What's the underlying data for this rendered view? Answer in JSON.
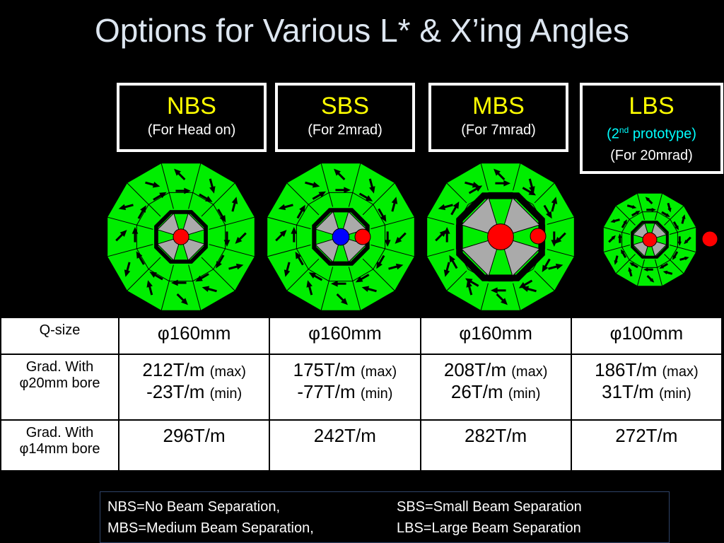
{
  "title": "Options for Various L* & X’ing Angles",
  "boxes": [
    {
      "name": "NBS",
      "note": "(For Head on)"
    },
    {
      "name": "SBS",
      "note": "(For 2mrad)"
    },
    {
      "name": "MBS",
      "note": "(For 7mrad)"
    },
    {
      "name": "LBS",
      "prototype": [
        "(2",
        "nd",
        " prototype)"
      ],
      "note": "(For 20mrad)"
    }
  ],
  "table": {
    "rows": [
      {
        "head": [
          "Q-size"
        ],
        "cells": [
          [
            "φ160mm"
          ],
          [
            "φ160mm"
          ],
          [
            "φ160mm"
          ],
          [
            "φ100mm"
          ]
        ]
      },
      {
        "head": [
          "Grad. With",
          "φ20mm bore"
        ],
        "cells": [
          [
            [
              "212T/m",
              "(max)"
            ],
            [
              "-23T/m",
              "(min)"
            ]
          ],
          [
            [
              "175T/m",
              "(max)"
            ],
            [
              "-77T/m",
              "(min)"
            ]
          ],
          [
            [
              "208T/m",
              "(max)"
            ],
            [
              "26T/m",
              "(min)"
            ]
          ],
          [
            [
              "186T/m",
              "(max)"
            ],
            [
              "31T/m",
              "(min)"
            ]
          ]
        ]
      },
      {
        "head": [
          "Grad. With",
          "φ14mm bore"
        ],
        "cells": [
          [
            "296T/m"
          ],
          [
            "242T/m"
          ],
          [
            "282T/m"
          ],
          [
            "272T/m"
          ]
        ]
      }
    ]
  },
  "legend": [
    "NBS=No Beam Separation,",
    "SBS=Small Beam Separation",
    "MBS=Medium Beam Separation,",
    "LBS=Large Beam Separation"
  ]
}
